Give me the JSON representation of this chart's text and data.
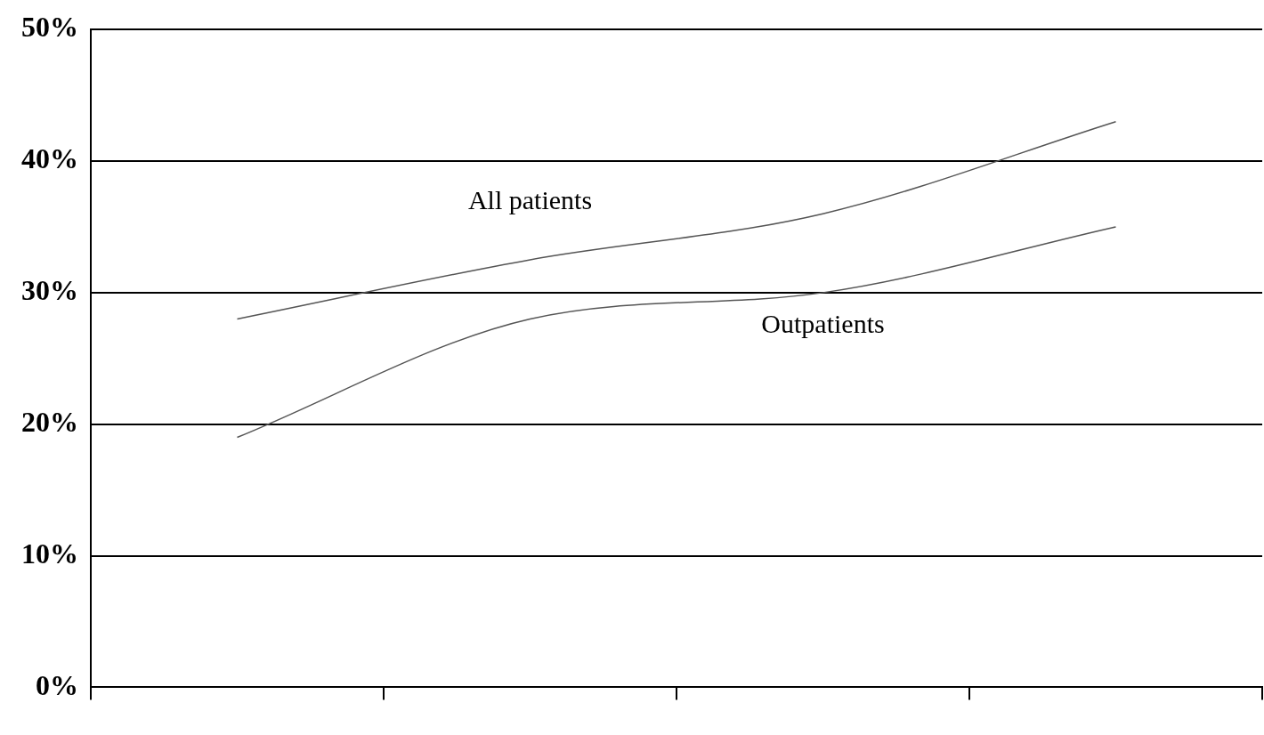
{
  "chart_data": {
    "type": "line",
    "categories": [
      null,
      null,
      null,
      null
    ],
    "series": [
      {
        "name": "All patients",
        "color": "#555555",
        "values": [
          28,
          32.5,
          36,
          43
        ]
      },
      {
        "name": "Outpatients",
        "color": "#555555",
        "values": [
          19,
          28,
          30,
          35
        ]
      }
    ],
    "ylim": [
      0,
      50
    ],
    "yticks": [
      {
        "value": 0,
        "label": "0%"
      },
      {
        "value": 10,
        "label": "10%"
      },
      {
        "value": 20,
        "label": "20%"
      },
      {
        "value": 30,
        "label": "30%"
      },
      {
        "value": 40,
        "label": "40%"
      },
      {
        "value": 50,
        "label": "50%"
      }
    ],
    "grid": "y",
    "legend": false,
    "marker": "none",
    "line_style": "solid"
  }
}
